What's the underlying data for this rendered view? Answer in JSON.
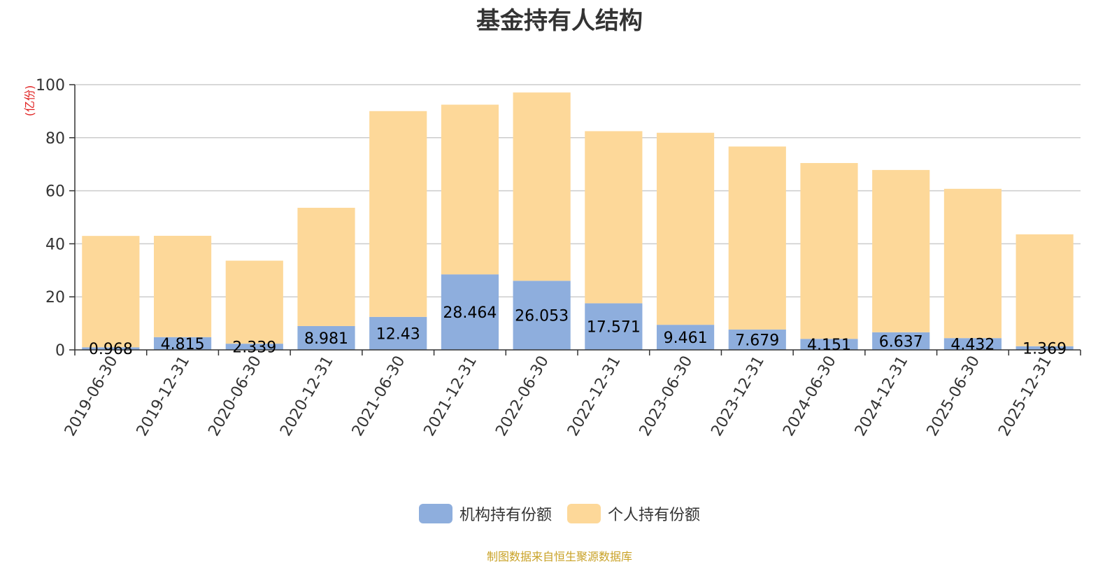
{
  "chart_data": {
    "type": "bar",
    "stacked": true,
    "title": "基金持有人结构",
    "ylabel": "(亿份)",
    "ylim": [
      0,
      100
    ],
    "yticks": [
      0,
      20,
      40,
      60,
      80,
      100
    ],
    "grid": true,
    "legend_position": "bottom-center",
    "categories": [
      "2019-06-30",
      "2019-12-31",
      "2020-06-30",
      "2020-12-31",
      "2021-06-30",
      "2021-12-31",
      "2022-06-30",
      "2022-12-31",
      "2023-06-30",
      "2023-12-31",
      "2024-06-30",
      "2024-12-31",
      "2025-06-30",
      "2025-12-31"
    ],
    "series": [
      {
        "name": "机构持有份额",
        "color": "#8eaedd",
        "values": [
          0.968,
          4.815,
          2.339,
          8.981,
          12.43,
          28.464,
          26.053,
          17.571,
          9.461,
          7.679,
          4.151,
          6.637,
          4.432,
          1.369
        ],
        "labels": [
          "0.968",
          "4.815",
          "2.339",
          "8.981",
          "12.43",
          "28.464",
          "26.053",
          "17.571",
          "9.461",
          "7.679",
          "4.151",
          "6.637",
          "4.432",
          "1.369"
        ]
      },
      {
        "name": "个人持有份额",
        "color": "#fdd899",
        "values": [
          42.0,
          38.2,
          31.3,
          44.6,
          77.6,
          64.0,
          71.0,
          64.9,
          72.4,
          69.0,
          66.3,
          61.2,
          56.3,
          42.2
        ]
      }
    ]
  },
  "footer": "制图数据来自恒生聚源数据库"
}
